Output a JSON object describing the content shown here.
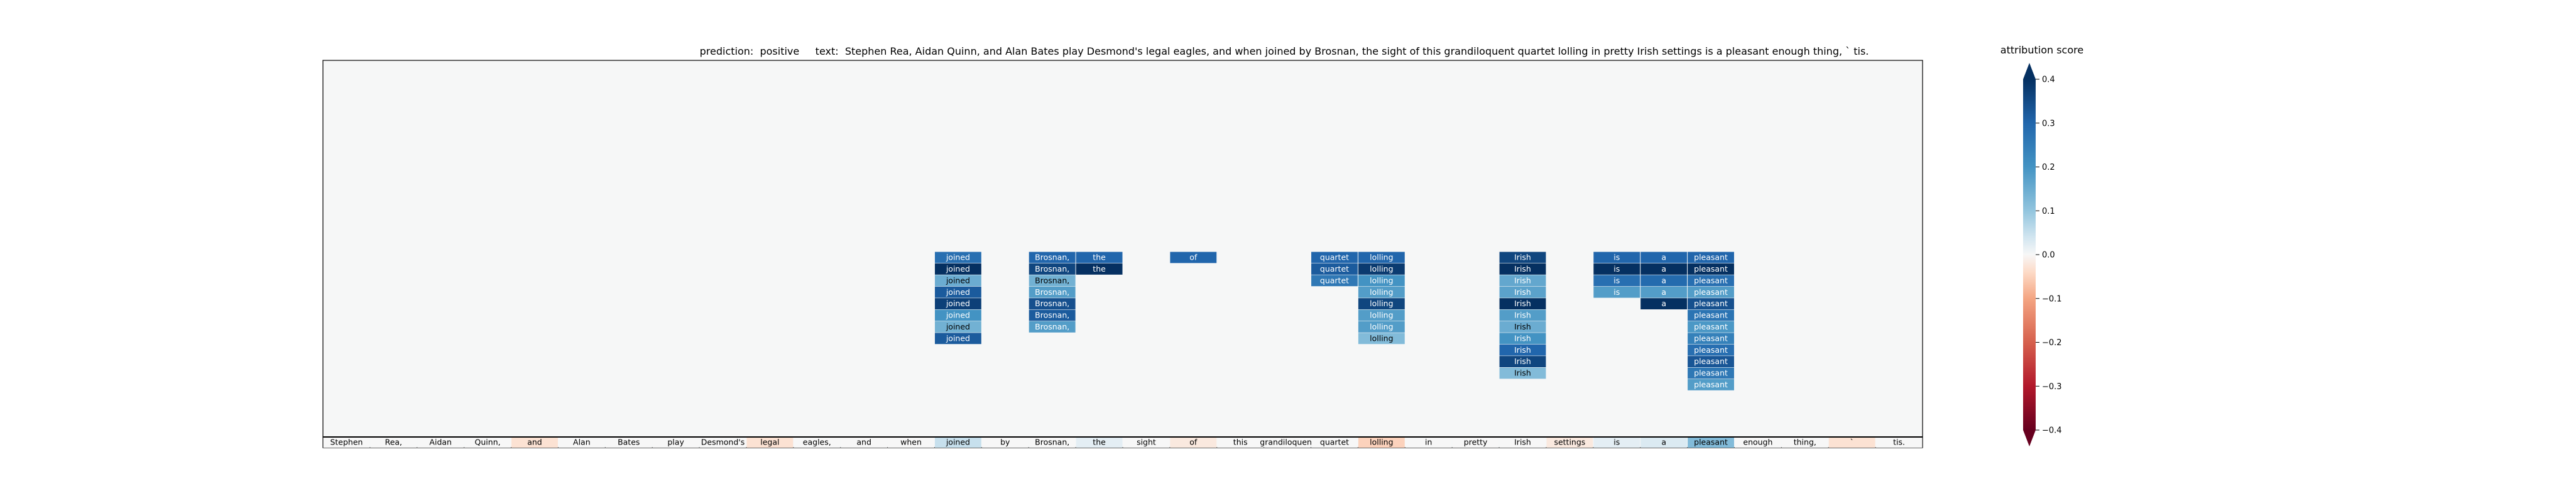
{
  "chart_data": {
    "type": "heatmap",
    "title_prefix": "prediction:",
    "prediction": "positive",
    "text_label": "text:",
    "text": "Stephen Rea, Aidan Quinn, and Alan Bates play Desmond's legal eagles, and when joined by Brosnan, the sight of this grandiloquent quartet lolling in pretty Irish settings is a pleasant enough thing, ` tis.",
    "tokens": [
      "Stephen",
      "Rea,",
      "Aidan",
      "Quinn,",
      "and",
      "Alan",
      "Bates",
      "play",
      "Desmond's",
      "legal",
      "eagles,",
      "and",
      "when",
      "joined",
      "by",
      "Brosnan,",
      "the",
      "sight",
      "of",
      "this",
      "grandiloquent",
      "quartet",
      "lolling",
      "in",
      "pretty",
      "Irish",
      "settings",
      "is",
      "a",
      "pleasant",
      "enough",
      "thing,",
      "`",
      "tis."
    ],
    "base_scores": [
      0.0,
      0.0,
      0.0,
      0.0,
      -0.03,
      0.0,
      0.0,
      0.0,
      0.0,
      -0.03,
      0.0,
      0.0,
      0.0,
      0.05,
      0.0,
      0.0,
      0.02,
      0.0,
      -0.02,
      0.0,
      0.0,
      0.0,
      -0.05,
      0.0,
      0.0,
      0.0,
      -0.02,
      0.02,
      0.03,
      0.12,
      0.0,
      0.0,
      -0.03,
      0.0
    ],
    "stack_rows": 16,
    "stacks": [
      {
        "token_index": 13,
        "scores": [
          0.28,
          0.4,
          0.15,
          0.32,
          0.37,
          0.2,
          0.14,
          0.32
        ]
      },
      {
        "token_index": 15,
        "scores": [
          0.3,
          0.36,
          0.14,
          0.18,
          0.34,
          0.32,
          0.18
        ]
      },
      {
        "token_index": 16,
        "scores": [
          0.3,
          0.42
        ]
      },
      {
        "token_index": 18,
        "scores": [
          0.3
        ]
      },
      {
        "token_index": 21,
        "scores": [
          0.3,
          0.32,
          0.26
        ]
      },
      {
        "token_index": 22,
        "scores": [
          0.3,
          0.38,
          0.2,
          0.18,
          0.36,
          0.18,
          0.18,
          0.12
        ]
      },
      {
        "token_index": 25,
        "scores": [
          0.36,
          0.4,
          0.16,
          0.17,
          0.41,
          0.18,
          0.15,
          0.2,
          0.3,
          0.36,
          0.12
        ]
      },
      {
        "token_index": 27,
        "scores": [
          0.3,
          0.42,
          0.28,
          0.18
        ]
      },
      {
        "token_index": 28,
        "scores": [
          0.3,
          0.42,
          0.29,
          0.18,
          0.43
        ]
      },
      {
        "token_index": 29,
        "scores": [
          0.3,
          0.42,
          0.28,
          0.18,
          0.34,
          0.27,
          0.19,
          0.24,
          0.28,
          0.33,
          0.26,
          0.18
        ]
      }
    ],
    "colorbar": {
      "label": "attribution score",
      "min": -0.4,
      "max": 0.4,
      "ticks": [
        "−0.4",
        "−0.3",
        "−0.2",
        "−0.1",
        "0.0",
        "0.1",
        "0.2",
        "0.3",
        "0.4"
      ]
    },
    "colors": {
      "background": "#f6f7f7",
      "positive_max": "#0a3063",
      "negative_max": "#67001f",
      "neutral": "#f7f7f7"
    }
  }
}
